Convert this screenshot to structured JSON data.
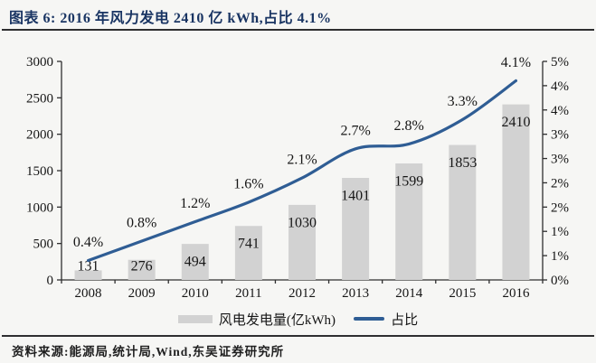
{
  "title": "图表 6: 2016 年风力发电 2410 亿 kWh,占比 4.1%",
  "source": "资料来源:能源局,统计局,Wind,东吴证券研究所",
  "legend": {
    "bars_label": "风电发电量(亿kWh)",
    "line_label": "占比"
  },
  "colors": {
    "bar": "#d2d2d2",
    "line": "#2f5d94",
    "title": "#1a3563",
    "text": "#161616",
    "axis": "#2f2f2f",
    "background": "#f6f6f4"
  },
  "chart_data": {
    "type": "bar+line combo",
    "title": "图表 6: 2016 年风力发电 2410 亿 kWh,占比 4.1%",
    "categories": [
      "2008",
      "2009",
      "2010",
      "2011",
      "2012",
      "2013",
      "2014",
      "2015",
      "2016"
    ],
    "series": [
      {
        "name": "风电发电量(亿kWh)",
        "type": "bar",
        "axis": "left",
        "values": [
          131,
          276,
          494,
          741,
          1030,
          1401,
          1599,
          1853,
          2410
        ],
        "labels": [
          "131",
          "276",
          "494",
          "741",
          "1030",
          "1401",
          "1599",
          "1853",
          "2410"
        ]
      },
      {
        "name": "占比",
        "type": "line",
        "axis": "right",
        "values_percent": [
          0.4,
          0.8,
          1.2,
          1.6,
          2.1,
          2.7,
          2.8,
          3.3,
          4.1
        ],
        "labels": [
          "0.4%",
          "0.8%",
          "1.2%",
          "1.6%",
          "2.1%",
          "2.7%",
          "2.8%",
          "3.3%",
          "4.1%"
        ]
      }
    ],
    "left_axis": {
      "min": 0,
      "max": 3000,
      "tick_step": 500,
      "tick_labels": [
        "0",
        "500",
        "1000",
        "1500",
        "2000",
        "2500",
        "3000"
      ]
    },
    "right_axis": {
      "min": 0,
      "max": 4.5,
      "tick_step": 0.5,
      "tick_labels_top_to_bottom": [
        "5%",
        "4%",
        "4%",
        "3%",
        "3%",
        "2%",
        "2%",
        "1%",
        "1%",
        "0%"
      ]
    },
    "grid": false,
    "legend_position": "bottom"
  }
}
